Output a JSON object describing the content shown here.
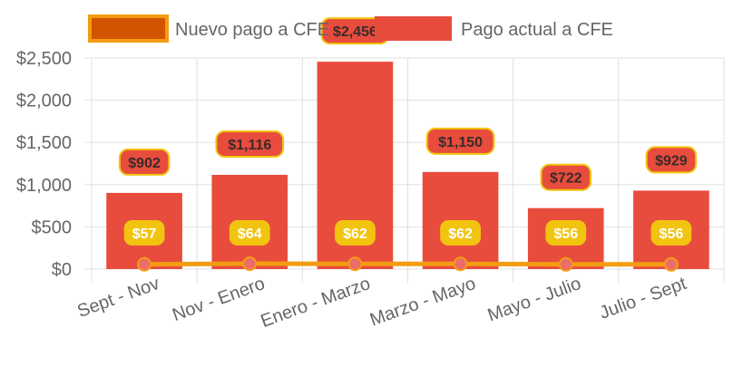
{
  "chart_data": {
    "type": "bar",
    "categories": [
      "Sept - Nov",
      "Nov - Enero",
      "Enero - Marzo",
      "Marzo - Mayo",
      "Mayo - Julio",
      "Julio - Sept"
    ],
    "series": [
      {
        "name": "Nuevo pago a CFE",
        "type": "line",
        "values": [
          57,
          64,
          62,
          62,
          56,
          56
        ],
        "labels": [
          "$57",
          "$64",
          "$62",
          "$62",
          "$56",
          "$56"
        ]
      },
      {
        "name": "Pago actual a CFE",
        "type": "bar",
        "values": [
          902,
          1116,
          2456,
          1150,
          722,
          929
        ],
        "labels": [
          "$902",
          "$1,116",
          "$2,456",
          "$1,150",
          "$722",
          "$929"
        ]
      }
    ],
    "y_ticks": [
      "$0",
      "$500",
      "$1,000",
      "$1,500",
      "$2,000",
      "$2,500"
    ],
    "y_tick_values": [
      0,
      500,
      1000,
      1500,
      2000,
      2500
    ],
    "ylim": [
      0,
      2500
    ],
    "grid": true,
    "legend_position": "top",
    "colors": {
      "bar": "#e84c3d",
      "line": "#f39c12",
      "line_legend_fill": "#d35400",
      "point": "#ec6c6c",
      "bar_label_bg": "#e84c3d",
      "bar_label_border": "#f1c40f",
      "bar_label_text": "#3a2a2a",
      "line_label_bg": "#f1c40f",
      "line_label_text": "#ffffff",
      "grid": "#e0e0e0",
      "tick_text": "#666666"
    }
  }
}
